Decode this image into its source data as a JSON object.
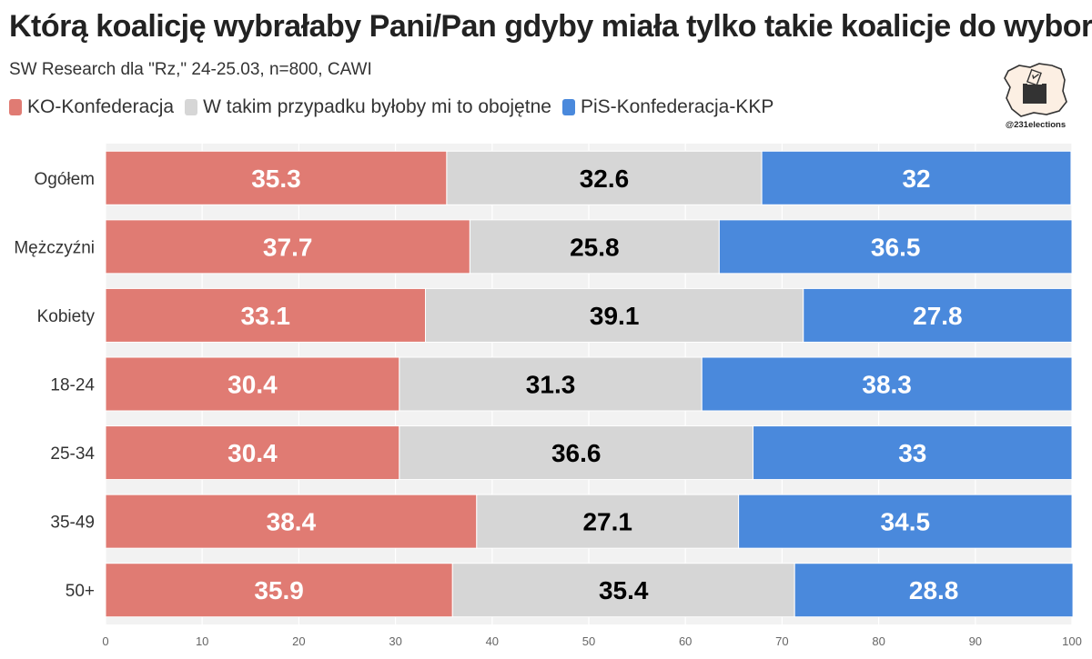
{
  "header": {
    "title": "Którą koalicję wybrałaby Pani/Pan gdyby miała tylko takie koalicje do wyboru?",
    "subtitle": "SW Research dla \"Rz,\" 24-25.03, n=800, CAWI"
  },
  "logo": {
    "handle": "@231elections",
    "icon": "poland-map-ballot-box-icon"
  },
  "colors": {
    "ko": "#E07B73",
    "neutral": "#D6D6D6",
    "pis": "#4A89DC",
    "background": "#F2F2F2"
  },
  "chart_data": {
    "type": "bar",
    "orientation": "horizontal",
    "stacked": true,
    "title": "Którą koalicję wybrałaby Pani/Pan gdyby miała tylko takie koalicje do wyboru?",
    "subtitle": "SW Research dla \"Rz,\" 24-25.03, n=800, CAWI",
    "categories": [
      "Ogółem",
      "Mężczyźni",
      "Kobiety",
      "18-24",
      "25-34",
      "35-49",
      "50+"
    ],
    "series": [
      {
        "name": "KO-Konfederacja",
        "color": "#E07B73",
        "label_color": "#ffffff",
        "values": [
          35.3,
          37.7,
          33.1,
          30.4,
          30.4,
          38.4,
          35.9
        ]
      },
      {
        "name": "W takim przypadku byłoby mi to obojętne",
        "color": "#D6D6D6",
        "label_color": "#000000",
        "values": [
          32.6,
          25.8,
          39.1,
          31.3,
          36.6,
          27.1,
          35.4
        ]
      },
      {
        "name": "PiS-Konfederacja-KKP",
        "color": "#4A89DC",
        "label_color": "#ffffff",
        "values": [
          32,
          36.5,
          27.8,
          38.3,
          33,
          34.5,
          28.8
        ]
      }
    ],
    "xlim": [
      0,
      100
    ],
    "xticks": [
      0,
      10,
      20,
      30,
      40,
      50,
      60,
      70,
      80,
      90,
      100
    ],
    "xlabel": "",
    "ylabel": "",
    "legend": "top-left",
    "grid": true
  }
}
